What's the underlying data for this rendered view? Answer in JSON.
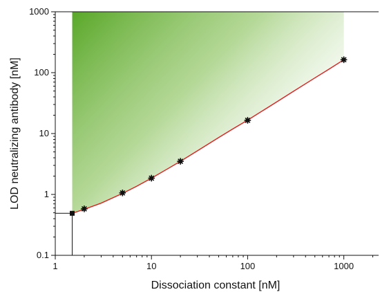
{
  "chart_data": {
    "type": "scatter",
    "title": "",
    "xlabel": "Dissociation constant [nM]",
    "ylabel": "LOD neutralizing antibody [nM]",
    "xscale": "log",
    "yscale": "log",
    "xlim": [
      1,
      2300
    ],
    "ylim": [
      0.1,
      1000
    ],
    "xticks": [
      1,
      10,
      100,
      1000
    ],
    "xtick_labels": [
      "1",
      "10",
      "100",
      "1000"
    ],
    "yticks": [
      0.1,
      1,
      10,
      100,
      1000
    ],
    "ytick_labels": [
      "0.1",
      "1",
      "10",
      "100",
      "1000"
    ],
    "grid": false,
    "series": [
      {
        "role": "measured points",
        "marker": "star",
        "color": "#111111",
        "x": [
          2,
          5,
          10,
          20,
          100,
          1000
        ],
        "y": [
          0.58,
          1.06,
          1.85,
          3.5,
          16.5,
          163
        ]
      },
      {
        "role": "fit curve",
        "style": "line",
        "color": "#e02020",
        "x": [
          1.5,
          2,
          3,
          5,
          7,
          10,
          15,
          20,
          30,
          50,
          70,
          100,
          200,
          300,
          500,
          700,
          1000
        ],
        "y": [
          0.49,
          0.57,
          0.72,
          1.04,
          1.36,
          1.85,
          2.68,
          3.5,
          5.2,
          8.6,
          11.9,
          16.6,
          33,
          49.5,
          82,
          114,
          163
        ]
      },
      {
        "role": "limit marker",
        "marker": "square",
        "color": "#111111",
        "x": [
          1.5
        ],
        "y": [
          0.49
        ]
      }
    ],
    "shaded_region": {
      "description": "green gradient region above the fit curve",
      "x_range": [
        1.5,
        1000
      ],
      "y_top": 1000,
      "color": "#5aa82a"
    }
  }
}
